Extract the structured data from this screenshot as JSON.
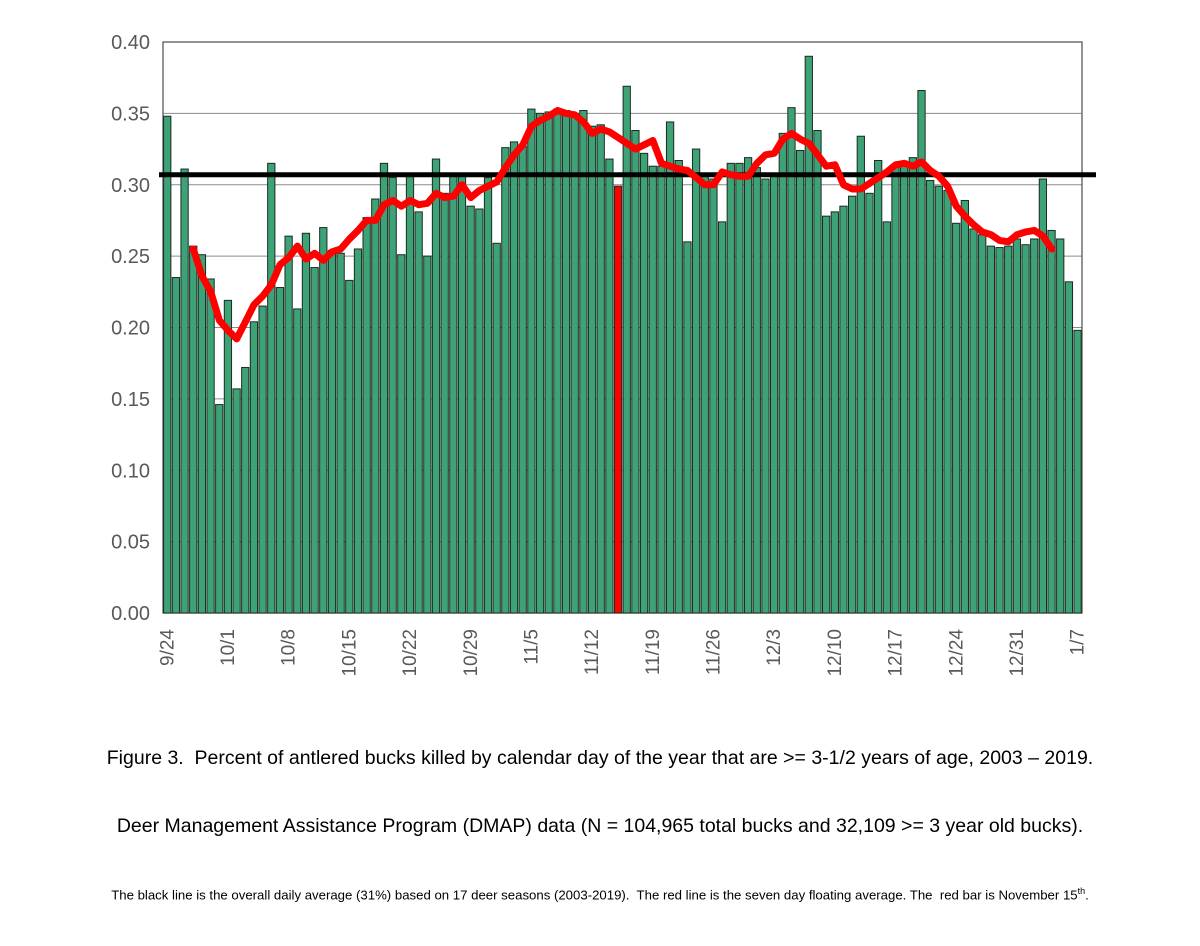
{
  "figure": {
    "caption_line1": "Figure 3.  Percent of antlered bucks killed by calendar day of the year that are >= 3-1/2 years of age, 2003 – 2019.",
    "caption_line2": "Deer Management Assistance Program (DMAP) data (N = 104,965 total bucks and 32,109 >= 3 year old bucks).",
    "footnote_pre": "The black line is the overall daily average (31%) based on 17 deer seasons (2003-2019).  The red line is the seven day floating average. The  red bar is November 15",
    "footnote_sup": "th",
    "footnote_post": "."
  },
  "chart_data": {
    "type": "bar",
    "title": "",
    "xlabel": "",
    "ylabel": "",
    "ylim": [
      0,
      0.4
    ],
    "grid": true,
    "legend": "none",
    "categories": [
      "9/24",
      "9/25",
      "9/26",
      "9/27",
      "9/28",
      "9/29",
      "9/30",
      "10/1",
      "10/2",
      "10/3",
      "10/4",
      "10/5",
      "10/6",
      "10/7",
      "10/8",
      "10/9",
      "10/10",
      "10/11",
      "10/12",
      "10/13",
      "10/14",
      "10/15",
      "10/16",
      "10/17",
      "10/18",
      "10/19",
      "10/20",
      "10/21",
      "10/22",
      "10/23",
      "10/24",
      "10/25",
      "10/26",
      "10/27",
      "10/28",
      "10/29",
      "10/30",
      "10/31",
      "11/1",
      "11/2",
      "11/3",
      "11/4",
      "11/5",
      "11/6",
      "11/7",
      "11/8",
      "11/9",
      "11/10",
      "11/11",
      "11/12",
      "11/13",
      "11/14",
      "11/15",
      "11/16",
      "11/17",
      "11/18",
      "11/19",
      "11/20",
      "11/21",
      "11/22",
      "11/23",
      "11/24",
      "11/25",
      "11/26",
      "11/27",
      "11/28",
      "11/29",
      "11/30",
      "12/1",
      "12/2",
      "12/3",
      "12/4",
      "12/5",
      "12/6",
      "12/7",
      "12/8",
      "12/9",
      "12/10",
      "12/11",
      "12/12",
      "12/13",
      "12/14",
      "12/15",
      "12/16",
      "12/17",
      "12/18",
      "12/19",
      "12/20",
      "12/21",
      "12/22",
      "12/23",
      "12/24",
      "12/25",
      "12/26",
      "12/27",
      "12/28",
      "12/29",
      "12/30",
      "12/31",
      "1/1",
      "1/2",
      "1/3",
      "1/4",
      "1/5",
      "1/6",
      "1/7"
    ],
    "values": [
      0.348,
      0.235,
      0.311,
      0.257,
      0.251,
      0.234,
      0.146,
      0.219,
      0.157,
      0.172,
      0.204,
      0.215,
      0.315,
      0.228,
      0.264,
      0.213,
      0.266,
      0.242,
      0.27,
      0.254,
      0.252,
      0.233,
      0.255,
      0.277,
      0.29,
      0.315,
      0.305,
      0.251,
      0.306,
      0.281,
      0.25,
      0.318,
      0.294,
      0.306,
      0.306,
      0.285,
      0.283,
      0.305,
      0.259,
      0.326,
      0.33,
      0.327,
      0.353,
      0.35,
      0.351,
      0.353,
      0.352,
      0.35,
      0.352,
      0.341,
      0.342,
      0.318,
      0.299,
      0.369,
      0.338,
      0.322,
      0.313,
      0.313,
      0.344,
      0.317,
      0.26,
      0.325,
      0.308,
      0.304,
      0.274,
      0.315,
      0.315,
      0.319,
      0.312,
      0.304,
      0.306,
      0.336,
      0.354,
      0.324,
      0.39,
      0.338,
      0.278,
      0.281,
      0.285,
      0.292,
      0.334,
      0.294,
      0.317,
      0.274,
      0.313,
      0.314,
      0.319,
      0.366,
      0.303,
      0.299,
      0.296,
      0.273,
      0.289,
      0.269,
      0.265,
      0.257,
      0.256,
      0.257,
      0.262,
      0.258,
      0.262,
      0.304,
      0.268,
      0.262,
      0.232,
      0.198
    ],
    "black_line": {
      "value": 0.307,
      "meaning": "overall daily average (31%), 17 deer seasons 2003-2019"
    },
    "red_bar": {
      "index": 52,
      "label": "11/15",
      "value": 0.299,
      "meaning": "November 15"
    },
    "red_line": {
      "meaning": "seven day floating average",
      "start_index": 3,
      "values": [
        0.255,
        0.236,
        0.225,
        0.205,
        0.198,
        0.192,
        0.204,
        0.216,
        0.222,
        0.23,
        0.244,
        0.249,
        0.257,
        0.248,
        0.252,
        0.247,
        0.253,
        0.255,
        0.262,
        0.268,
        0.275,
        0.275,
        0.286,
        0.289,
        0.285,
        0.289,
        0.286,
        0.287,
        0.294,
        0.291,
        0.292,
        0.3,
        0.291,
        0.296,
        0.299,
        0.302,
        0.312,
        0.321,
        0.328,
        0.341,
        0.345,
        0.348,
        0.352,
        0.35,
        0.349,
        0.344,
        0.336,
        0.339,
        0.337,
        0.333,
        0.329,
        0.325,
        0.328,
        0.331,
        0.315,
        0.313,
        0.311,
        0.31,
        0.305,
        0.3,
        0.3,
        0.309,
        0.307,
        0.306,
        0.306,
        0.315,
        0.321,
        0.322,
        0.332,
        0.336,
        0.332,
        0.329,
        0.321,
        0.313,
        0.314,
        0.3,
        0.297,
        0.297,
        0.301,
        0.305,
        0.309,
        0.314,
        0.315,
        0.313,
        0.316,
        0.31,
        0.306,
        0.299,
        0.285,
        0.278,
        0.272,
        0.267,
        0.265,
        0.261,
        0.26,
        0.265,
        0.267,
        0.268,
        0.264,
        0.255
      ]
    },
    "x_ticks": [
      {
        "label": "9/24",
        "index": 0
      },
      {
        "label": "10/1",
        "index": 7
      },
      {
        "label": "10/8",
        "index": 14
      },
      {
        "label": "10/15",
        "index": 21
      },
      {
        "label": "10/22",
        "index": 28
      },
      {
        "label": "10/29",
        "index": 35
      },
      {
        "label": "11/5",
        "index": 42
      },
      {
        "label": "11/12",
        "index": 49
      },
      {
        "label": "11/19",
        "index": 56
      },
      {
        "label": "11/26",
        "index": 63
      },
      {
        "label": "12/3",
        "index": 70
      },
      {
        "label": "12/10",
        "index": 77
      },
      {
        "label": "12/17",
        "index": 84
      },
      {
        "label": "12/24",
        "index": 91
      },
      {
        "label": "12/31",
        "index": 98
      },
      {
        "label": "1/7",
        "index": 105
      }
    ],
    "y_ticks": [
      {
        "label": "0.00",
        "value": 0.0
      },
      {
        "label": "0.05",
        "value": 0.05
      },
      {
        "label": "0.10",
        "value": 0.1
      },
      {
        "label": "0.15",
        "value": 0.15
      },
      {
        "label": "0.20",
        "value": 0.2
      },
      {
        "label": "0.25",
        "value": 0.25
      },
      {
        "label": "0.30",
        "value": 0.3
      },
      {
        "label": "0.35",
        "value": 0.35
      },
      {
        "label": "0.40",
        "value": 0.4
      }
    ],
    "colors": {
      "bar_fill": "#3ea277",
      "bar_stroke": "#1c2b22",
      "red": "#fe0000",
      "black_line": "#000000",
      "gridline": "#8c8c8c",
      "border": "#595959",
      "axis_text": "#595959"
    }
  }
}
